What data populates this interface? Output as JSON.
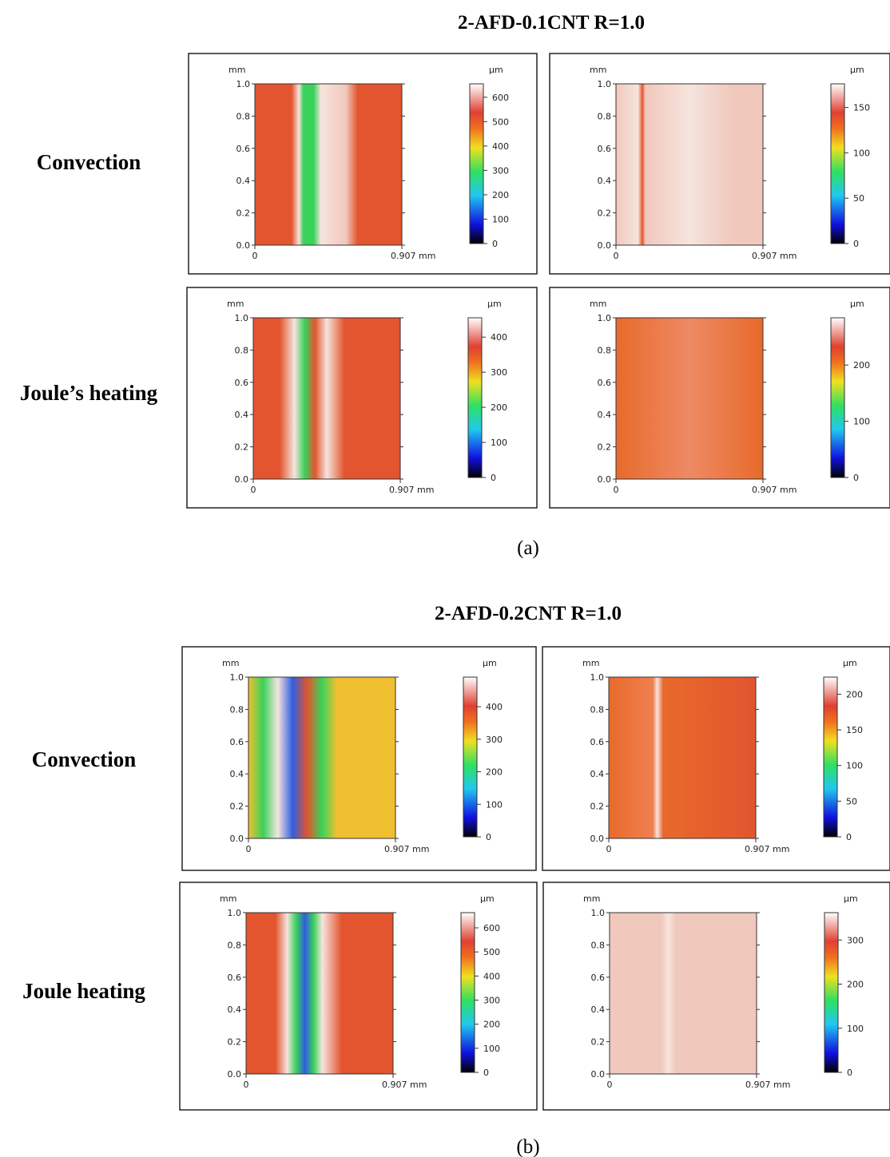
{
  "figures": [
    {
      "title": "2-AFD-0.1CNT R=1.0",
      "caption": "(a)",
      "rows": [
        {
          "label": "Convection",
          "panels": [
            {
              "zticks": [
                0,
                100,
                200,
                300,
                400,
                500,
                600
              ],
              "zlim": [
                0,
                655
              ]
            },
            {
              "zticks": [
                0,
                50,
                100,
                150
              ],
              "zlim": [
                0,
                176
              ]
            }
          ]
        },
        {
          "label": "Joule’s heating",
          "panels": [
            {
              "zticks": [
                0,
                100,
                200,
                300,
                400
              ],
              "zlim": [
                0,
                455
              ]
            },
            {
              "zticks": [
                0,
                100,
                200
              ],
              "zlim": [
                0,
                284
              ]
            }
          ]
        }
      ]
    },
    {
      "title": "2-AFD-0.2CNT R=1.0",
      "caption": "(b)",
      "rows": [
        {
          "label": "Convection",
          "panels": [
            {
              "zticks": [
                0,
                100,
                200,
                300,
                400
              ],
              "zlim": [
                0,
                491
              ]
            },
            {
              "zticks": [
                0,
                50,
                100,
                150,
                200
              ],
              "zlim": [
                0,
                224
              ]
            }
          ]
        },
        {
          "label": "Joule heating",
          "panels": [
            {
              "zticks": [
                0,
                100,
                200,
                300,
                400,
                500,
                600
              ],
              "zlim": [
                0,
                663
              ]
            },
            {
              "zticks": [
                0,
                100,
                200,
                300
              ],
              "zlim": [
                0,
                362
              ]
            }
          ]
        }
      ]
    }
  ],
  "axes": {
    "y_unit": "mm",
    "z_unit": "µm",
    "ylim": [
      0,
      1
    ],
    "yticks": [
      {
        "value": 0,
        "label": "0.0"
      },
      {
        "value": 0.2,
        "label": "0.2"
      },
      {
        "value": 0.4,
        "label": "0.4"
      },
      {
        "value": 0.6,
        "label": "0.6"
      },
      {
        "value": 0.8,
        "label": "0.8"
      },
      {
        "value": 1,
        "label": "1.0"
      }
    ],
    "xlim": [
      0,
      0.907
    ],
    "xticks": [
      0,
      {
        "value": 0.907,
        "label": "0.907 mm"
      }
    ]
  }
}
